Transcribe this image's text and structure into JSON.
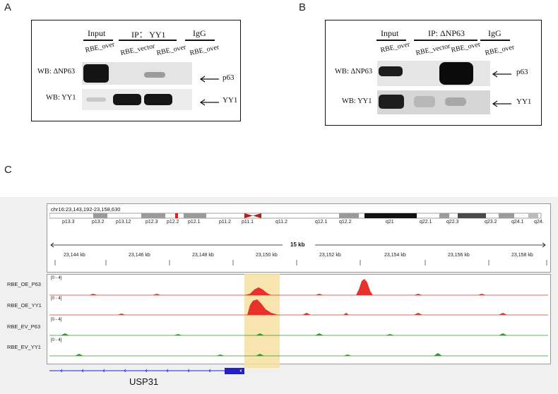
{
  "panelA": {
    "letter": "A",
    "headers": {
      "input": "Input",
      "ip": "IP： YY1",
      "igg": "IgG"
    },
    "lanes": [
      "RBE_over",
      "RBE_vector",
      "RBE_over",
      "RBE_over"
    ],
    "rows": [
      {
        "label": "WB: ΔNP63",
        "target": "p63"
      },
      {
        "label": "WB: YY1",
        "target": "YY1"
      }
    ]
  },
  "panelB": {
    "letter": "B",
    "headers": {
      "input": "Input",
      "ip": "IP: ΔNP63",
      "igg": "IgG"
    },
    "lanes": [
      "RBE_over",
      "RBE_vector",
      "RBE_over",
      "RBE_over"
    ],
    "rows": [
      {
        "label": "WB: ΔNP63",
        "target": "p63"
      },
      {
        "label": "WB: YY1",
        "target": "YY1"
      }
    ]
  },
  "panelC": {
    "letter": "C",
    "locus": "chr16:23,143,192-23,158,630",
    "bands": [
      "p13.3",
      "p13.2",
      "p13.12",
      "p12.3",
      "p12.2",
      "p12.1",
      "p11.2",
      "p11.1",
      "q11.2",
      "q12.1",
      "q12.2",
      "q21",
      "q22.1",
      "q22.3",
      "q23.2",
      "q24.1",
      "q24."
    ],
    "scale_label": "15 kb",
    "ticks": [
      "23,144 kb",
      "23,146 kb",
      "23,148 kb",
      "23,150 kb",
      "23,152 kb",
      "23,154 kb",
      "23,156 kb",
      "23,158 kb"
    ],
    "range_label": "[0 - 4]",
    "tracks": [
      {
        "name": "RBE_OE_P63",
        "color": "#e8312a"
      },
      {
        "name": "RBE_OE_YY1",
        "color": "#e8312a"
      },
      {
        "name": "RBE_EV_P63",
        "color": "#2e9a2e"
      },
      {
        "name": "RBE_EV_YY1",
        "color": "#2e9a2e"
      }
    ],
    "gene": "USP31",
    "highlight_color": "#f7dfa0"
  }
}
